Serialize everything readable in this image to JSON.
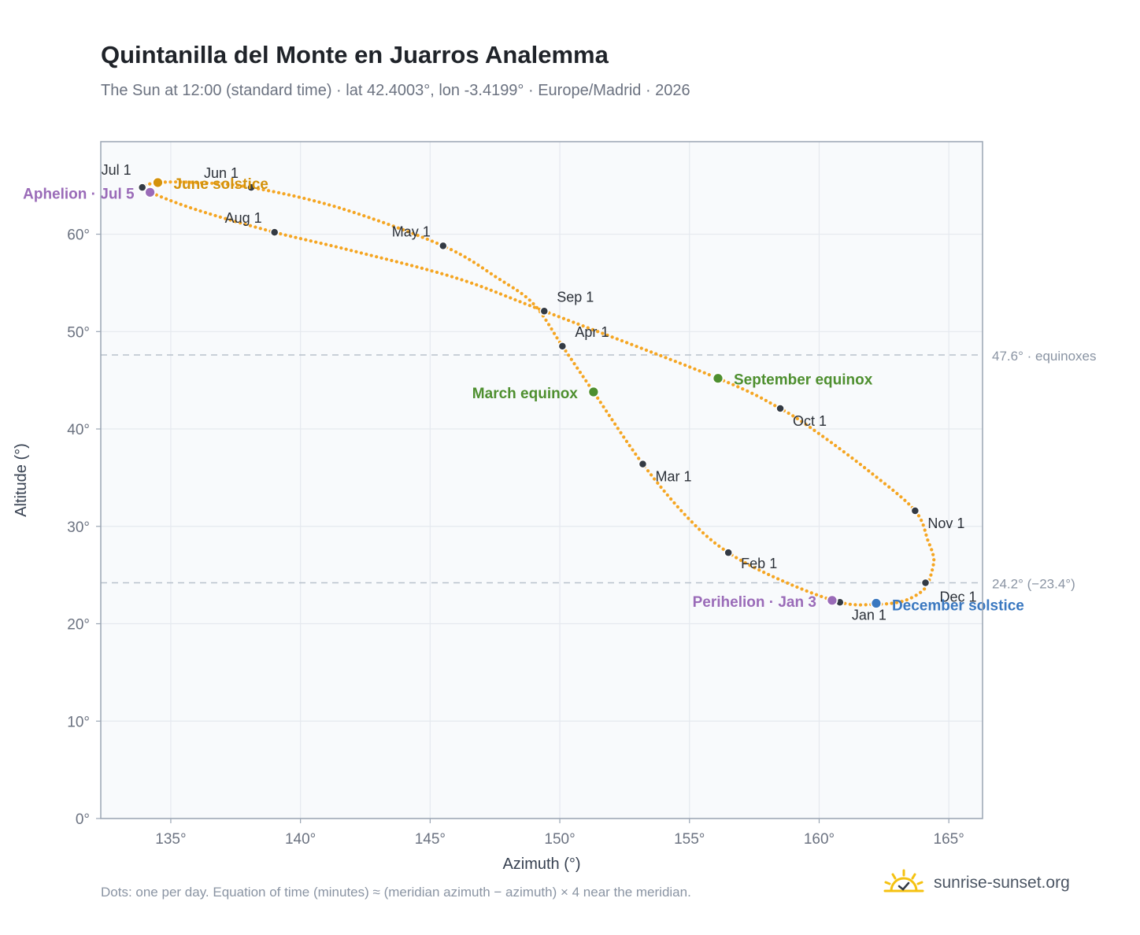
{
  "header": {
    "title": "Quintanilla del Monte en Juarros Analemma",
    "subtitle": "The Sun at 12:00 (standard time) · lat 42.4003°, lon -3.4199° · Europe/Madrid · 2026"
  },
  "footer": {
    "note": "Dots: one per day. Equation of time (minutes) ≈ (meridian azimuth − azimuth) × 4 near the meridian.",
    "brand": "sunrise-sunset.org",
    "brand_icon": "sun-logo-icon"
  },
  "colors": {
    "curve": "#f5a623",
    "month_dot": "#333a44",
    "june_solstice": "#d4920b",
    "december_solstice": "#3a78c0",
    "equinox": "#4e8f2f",
    "apsis": "#9a6bb8",
    "grid": "#e5e9ef",
    "plot_bg": "#f8fafc",
    "frame": "#9aa5b3",
    "refline": "#b8c1cc"
  },
  "chart_data": {
    "type": "scatter",
    "xlabel": "Azimuth (°)",
    "ylabel": "Altitude (°)",
    "xlim": [
      132.3,
      166.3
    ],
    "ylim": [
      0,
      69.5
    ],
    "xticks": [
      135,
      140,
      145,
      150,
      155,
      160,
      165
    ],
    "yticks": [
      0,
      10,
      20,
      30,
      40,
      50,
      60
    ],
    "tick_suffix": "°",
    "grid": true,
    "path_points": [
      [
        160.8,
        22.2
      ],
      [
        162.2,
        22.0
      ],
      [
        163.2,
        22.3
      ],
      [
        163.9,
        23.2
      ],
      [
        164.2,
        24.2
      ],
      [
        164.4,
        26.0
      ],
      [
        164.4,
        27.0
      ],
      [
        164.2,
        28.5
      ],
      [
        163.7,
        31.6
      ],
      [
        162.0,
        35.5
      ],
      [
        160.0,
        39.5
      ],
      [
        158.5,
        42.1
      ],
      [
        156.1,
        45.2
      ],
      [
        149.4,
        52.1
      ],
      [
        146.0,
        55.5
      ],
      [
        142.0,
        58.3
      ],
      [
        139.0,
        60.2
      ],
      [
        136.0,
        62.5
      ],
      [
        134.2,
        64.3
      ],
      [
        133.9,
        64.8
      ],
      [
        134.5,
        65.3
      ],
      [
        136.0,
        65.3
      ],
      [
        138.1,
        64.8
      ],
      [
        141.5,
        62.7
      ],
      [
        145.5,
        58.8
      ],
      [
        147.6,
        55.5
      ],
      [
        149.0,
        52.8
      ],
      [
        150.1,
        48.5
      ],
      [
        151.3,
        43.8
      ],
      [
        153.2,
        36.4
      ],
      [
        155.0,
        30.7
      ],
      [
        156.5,
        27.3
      ],
      [
        158.5,
        24.5
      ],
      [
        160.8,
        22.2
      ]
    ],
    "months": [
      {
        "label": "Jan 1",
        "x": 160.8,
        "y": 22.2
      },
      {
        "label": "Feb 1",
        "x": 156.5,
        "y": 27.3
      },
      {
        "label": "Mar 1",
        "x": 153.2,
        "y": 36.4
      },
      {
        "label": "Apr 1",
        "x": 150.1,
        "y": 48.5
      },
      {
        "label": "May 1",
        "x": 145.5,
        "y": 58.8
      },
      {
        "label": "Jun 1",
        "x": 138.1,
        "y": 64.8
      },
      {
        "label": "Jul 1",
        "x": 133.9,
        "y": 64.8
      },
      {
        "label": "Aug 1",
        "x": 139.0,
        "y": 60.2
      },
      {
        "label": "Sep 1",
        "x": 149.4,
        "y": 52.1
      },
      {
        "label": "Oct 1",
        "x": 158.5,
        "y": 42.1
      },
      {
        "label": "Nov 1",
        "x": 163.7,
        "y": 31.6
      },
      {
        "label": "Dec 1",
        "x": 164.1,
        "y": 24.2
      }
    ],
    "events": [
      {
        "label": "June solstice",
        "x": 134.5,
        "y": 65.3,
        "color": "#d4920b"
      },
      {
        "label": "Aphelion · Jul 5",
        "x": 134.2,
        "y": 64.3,
        "color": "#9a6bb8"
      },
      {
        "label": "March equinox",
        "x": 151.3,
        "y": 43.8,
        "color": "#4e8f2f"
      },
      {
        "label": "September equinox",
        "x": 156.1,
        "y": 45.2,
        "color": "#4e8f2f"
      },
      {
        "label": "Perihelion · Jan 3",
        "x": 160.5,
        "y": 22.4,
        "color": "#9a6bb8"
      },
      {
        "label": "December solstice",
        "x": 162.2,
        "y": 22.1,
        "color": "#3a78c0"
      }
    ],
    "reference_lines": [
      {
        "y": 47.6,
        "label": "47.6° · equinoxes"
      },
      {
        "y": 24.2,
        "label": "24.2° (−23.4°)"
      }
    ]
  }
}
